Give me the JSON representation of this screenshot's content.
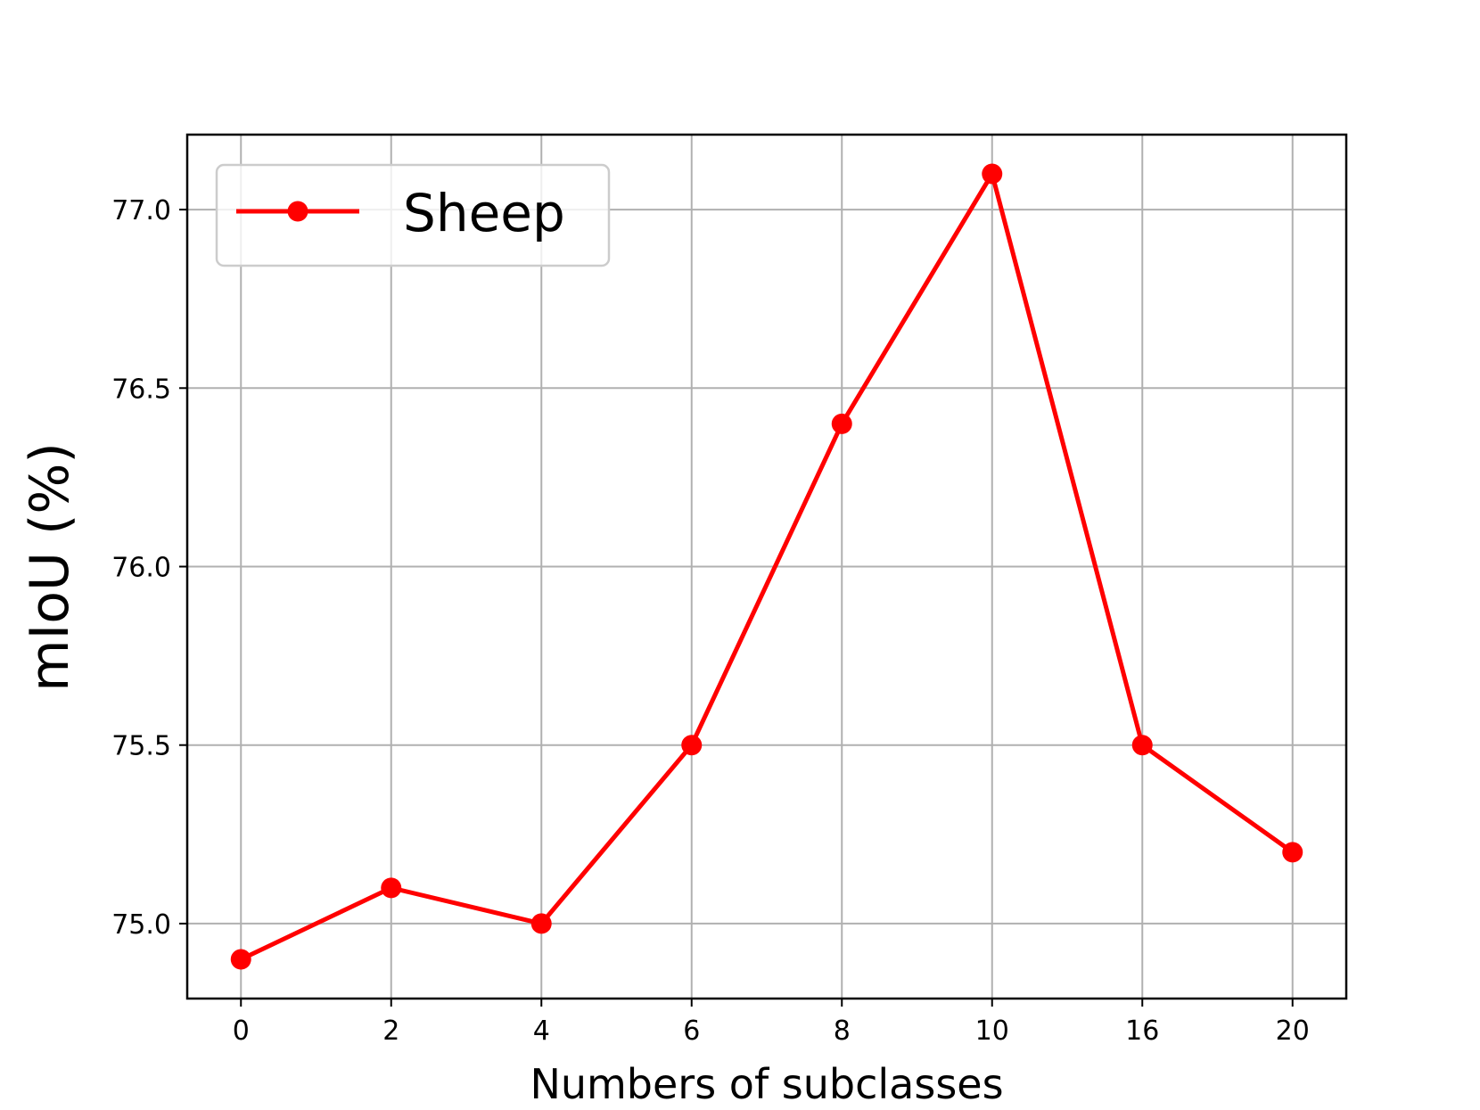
{
  "chart_data": {
    "type": "line",
    "title": "",
    "xlabel": "Numbers of subclasses",
    "ylabel": "mIoU (%)",
    "categories": [
      "0",
      "2",
      "4",
      "6",
      "8",
      "10",
      "16",
      "20"
    ],
    "series": [
      {
        "name": "Sheep",
        "color": "#ff0000",
        "marker": "circle",
        "values": [
          74.9,
          75.1,
          75.0,
          75.5,
          76.4,
          77.1,
          75.5,
          75.2
        ]
      }
    ],
    "ylim": [
      74.79,
      77.21
    ],
    "yticks": [
      75.0,
      75.5,
      76.0,
      76.5,
      77.0
    ],
    "ytick_labels": [
      "75.0",
      "75.5",
      "76.0",
      "76.5",
      "77.0"
    ],
    "grid": true,
    "legend_position": "upper-left"
  }
}
